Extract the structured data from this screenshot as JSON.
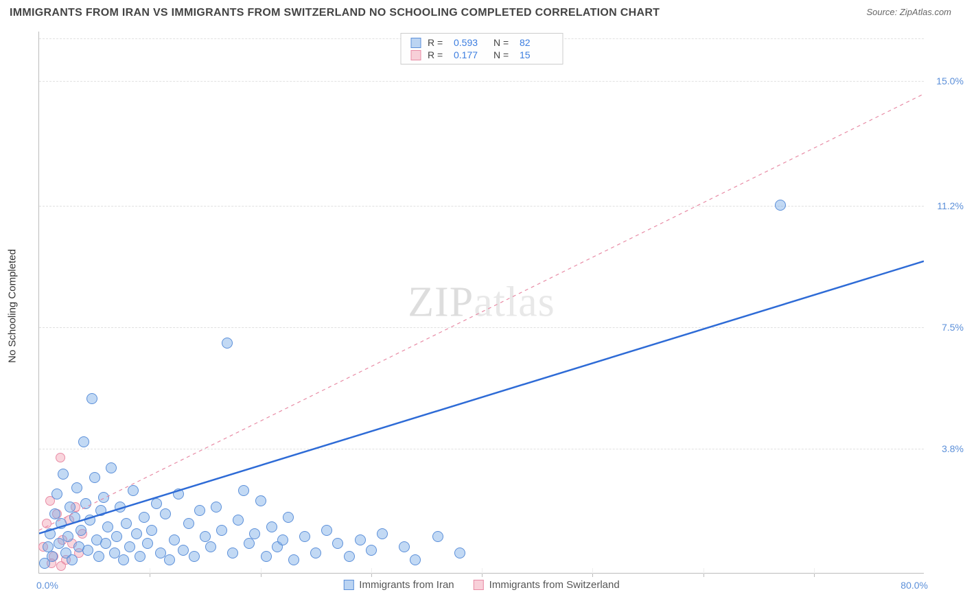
{
  "title": "IMMIGRANTS FROM IRAN VS IMMIGRANTS FROM SWITZERLAND NO SCHOOLING COMPLETED CORRELATION CHART",
  "source": "Source: ZipAtlas.com",
  "ylabel": "No Schooling Completed",
  "watermark_a": "ZIP",
  "watermark_b": "atlas",
  "chart": {
    "type": "scatter",
    "xlim": [
      0,
      80
    ],
    "ylim": [
      0,
      16.5
    ],
    "x_start_label": "0.0%",
    "x_end_label": "80.0%",
    "y_gridlines": [
      3.8,
      7.5,
      11.2,
      15.0
    ],
    "y_grid_top": 16.3,
    "x_ticks_step": 10,
    "background_color": "#ffffff",
    "grid_color": "#e0e0e0",
    "axis_color": "#bbbbbb",
    "tick_label_color": "#5b8fd9"
  },
  "series": {
    "iran": {
      "label": "Immigrants from Iran",
      "fill": "rgba(120,170,230,0.45)",
      "stroke": "#5b8fd9",
      "R": "0.593",
      "N": "82",
      "trend": {
        "x1": 0,
        "y1": 1.2,
        "x2": 80,
        "y2": 9.5,
        "stroke": "#2e6bd6",
        "width": 2.5,
        "dash": "none"
      },
      "points": [
        [
          0.5,
          0.3
        ],
        [
          0.8,
          0.8
        ],
        [
          1.0,
          1.2
        ],
        [
          1.2,
          0.5
        ],
        [
          1.4,
          1.8
        ],
        [
          1.6,
          2.4
        ],
        [
          1.8,
          0.9
        ],
        [
          2.0,
          1.5
        ],
        [
          2.2,
          3.0
        ],
        [
          2.4,
          0.6
        ],
        [
          2.6,
          1.1
        ],
        [
          2.8,
          2.0
        ],
        [
          3.0,
          0.4
        ],
        [
          3.2,
          1.7
        ],
        [
          3.4,
          2.6
        ],
        [
          3.6,
          0.8
        ],
        [
          3.8,
          1.3
        ],
        [
          4.0,
          4.0
        ],
        [
          4.2,
          2.1
        ],
        [
          4.4,
          0.7
        ],
        [
          4.6,
          1.6
        ],
        [
          4.8,
          5.3
        ],
        [
          5.0,
          2.9
        ],
        [
          5.2,
          1.0
        ],
        [
          5.4,
          0.5
        ],
        [
          5.6,
          1.9
        ],
        [
          5.8,
          2.3
        ],
        [
          6.0,
          0.9
        ],
        [
          6.2,
          1.4
        ],
        [
          6.5,
          3.2
        ],
        [
          6.8,
          0.6
        ],
        [
          7.0,
          1.1
        ],
        [
          7.3,
          2.0
        ],
        [
          7.6,
          0.4
        ],
        [
          7.9,
          1.5
        ],
        [
          8.2,
          0.8
        ],
        [
          8.5,
          2.5
        ],
        [
          8.8,
          1.2
        ],
        [
          9.1,
          0.5
        ],
        [
          9.5,
          1.7
        ],
        [
          9.8,
          0.9
        ],
        [
          10.2,
          1.3
        ],
        [
          10.6,
          2.1
        ],
        [
          11.0,
          0.6
        ],
        [
          11.4,
          1.8
        ],
        [
          11.8,
          0.4
        ],
        [
          12.2,
          1.0
        ],
        [
          12.6,
          2.4
        ],
        [
          13.0,
          0.7
        ],
        [
          13.5,
          1.5
        ],
        [
          14.0,
          0.5
        ],
        [
          14.5,
          1.9
        ],
        [
          15.0,
          1.1
        ],
        [
          15.5,
          0.8
        ],
        [
          16.0,
          2.0
        ],
        [
          16.5,
          1.3
        ],
        [
          17.0,
          7.0
        ],
        [
          17.5,
          0.6
        ],
        [
          18.0,
          1.6
        ],
        [
          18.5,
          2.5
        ],
        [
          19.0,
          0.9
        ],
        [
          19.5,
          1.2
        ],
        [
          20.0,
          2.2
        ],
        [
          20.5,
          0.5
        ],
        [
          21.0,
          1.4
        ],
        [
          21.5,
          0.8
        ],
        [
          22.0,
          1.0
        ],
        [
          22.5,
          1.7
        ],
        [
          23.0,
          0.4
        ],
        [
          24.0,
          1.1
        ],
        [
          25.0,
          0.6
        ],
        [
          26.0,
          1.3
        ],
        [
          27.0,
          0.9
        ],
        [
          28.0,
          0.5
        ],
        [
          29.0,
          1.0
        ],
        [
          30.0,
          0.7
        ],
        [
          31.0,
          1.2
        ],
        [
          33.0,
          0.8
        ],
        [
          34.0,
          0.4
        ],
        [
          36.0,
          1.1
        ],
        [
          38.0,
          0.6
        ],
        [
          67.0,
          11.2
        ]
      ]
    },
    "swiss": {
      "label": "Immigrants from Switzerland",
      "fill": "rgba(240,150,170,0.4)",
      "stroke": "#e88ba5",
      "R": "0.177",
      "N": "15",
      "trend": {
        "x1": 0,
        "y1": 1.3,
        "x2": 80,
        "y2": 14.6,
        "stroke": "#e88ba5",
        "width": 1.2,
        "dash": "5,5"
      },
      "points": [
        [
          0.4,
          0.8
        ],
        [
          0.7,
          1.5
        ],
        [
          1.0,
          2.2
        ],
        [
          1.3,
          0.5
        ],
        [
          1.6,
          1.8
        ],
        [
          1.9,
          3.5
        ],
        [
          2.1,
          1.0
        ],
        [
          2.4,
          0.4
        ],
        [
          2.7,
          1.6
        ],
        [
          3.0,
          0.9
        ],
        [
          3.3,
          2.0
        ],
        [
          3.6,
          0.6
        ],
        [
          3.9,
          1.2
        ],
        [
          1.1,
          0.3
        ],
        [
          2.0,
          0.2
        ]
      ]
    }
  },
  "stats_labels": {
    "R": "R =",
    "N": "N ="
  }
}
